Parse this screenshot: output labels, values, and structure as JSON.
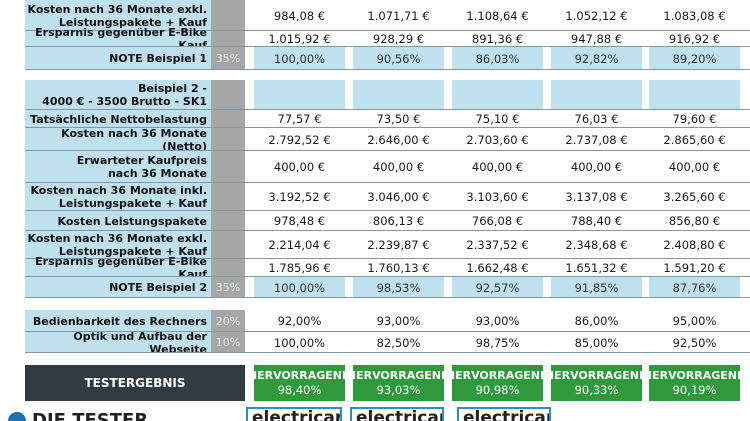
{
  "rows": [
    {
      "label": "Kosten nach 36 Monate exkl.\nLeistungspakete + Kauf",
      "weight": "",
      "values": [
        "984,08 €",
        "1.071,71 €",
        "1.108,64 €",
        "1.052,12 €",
        "1.083,08 €"
      ]
    },
    {
      "label": "Ersparnis gegenüber E-Bike Kauf",
      "weight": "",
      "values": [
        "1.015,92 €",
        "928,29 €",
        "891,36 €",
        "947,88 €",
        "916,92 €"
      ]
    },
    {
      "label": "NOTE Beispiel 1",
      "weight": "35%",
      "values": [
        "100,00%",
        "90,56%",
        "86,03%",
        "92,82%",
        "89,20%"
      ]
    },
    {
      "label": "Beispiel 2 -\n4000 € - 3500 Brutto - SK1",
      "weight": "",
      "values": [
        "",
        "",
        "",
        "",
        ""
      ]
    },
    {
      "label": "Tatsächliche Nettobelastung",
      "weight": "",
      "values": [
        "77,57 €",
        "73,50 €",
        "75,10 €",
        "76,03 €",
        "79,60 €"
      ]
    },
    {
      "label": "Kosten nach 36 Monate (Netto)",
      "weight": "",
      "values": [
        "2.792,52 €",
        "2.646,00 €",
        "2.703,60 €",
        "2.737,08 €",
        "2.865,60 €"
      ]
    },
    {
      "label": "Erwarteter Kaufpreis\nnach 36 Monate",
      "weight": "",
      "values": [
        "400,00 €",
        "400,00 €",
        "400,00 €",
        "400,00 €",
        "400,00 €"
      ]
    },
    {
      "label": "Kosten nach 36 Monate inkl.\nLeistungspakete + Kauf",
      "weight": "",
      "values": [
        "3.192,52 €",
        "3.046,00 €",
        "3.103,60 €",
        "3.137,08 €",
        "3.265,60 €"
      ]
    },
    {
      "label": "Kosten Leistungspakete",
      "weight": "",
      "values": [
        "978,48 €",
        "806,13 €",
        "766,08 €",
        "788,40 €",
        "856,80 €"
      ]
    },
    {
      "label": "Kosten nach 36 Monate exkl.\nLeistungspakete + Kauf",
      "weight": "",
      "values": [
        "2.214,04 €",
        "2.239,87 €",
        "2.337,52 €",
        "2.348,68 €",
        "2.408,80 €"
      ]
    },
    {
      "label": "Ersparnis gegenüber E-Bike Kauf",
      "weight": "",
      "values": [
        "1.785,96 €",
        "1.760,13 €",
        "1.662,48 €",
        "1.651,32 €",
        "1.591,20 €"
      ]
    },
    {
      "label": "NOTE Beispiel 2",
      "weight": "35%",
      "values": [
        "100,00%",
        "98,53%",
        "92,57%",
        "91,85%",
        "87,76%"
      ]
    },
    {
      "label": "Bedienbarkeit des Rechners",
      "weight": "20%",
      "values": [
        "92,00%",
        "93,00%",
        "93,00%",
        "86,00%",
        "95,00%"
      ]
    },
    {
      "label": "Optik und Aufbau der Webseite",
      "weight": "10%",
      "values": [
        "100,00%",
        "82,50%",
        "98,75%",
        "85,00%",
        "92,50%"
      ]
    }
  ],
  "result": {
    "label": "TESTERGEBNIS",
    "items": [
      {
        "title": "HERVORRAGEND",
        "value": "98,40%"
      },
      {
        "title": "HERVORRAGEND",
        "value": "93,03%"
      },
      {
        "title": "HERVORRAGEND",
        "value": "90,98%"
      },
      {
        "title": "HERVORRAGEND",
        "value": "90,33%"
      },
      {
        "title": "HERVORRAGEND",
        "value": "90,19%"
      }
    ]
  },
  "footer": {
    "tester_label": "DIE TESTER",
    "logos": [
      "electricar",
      "electricar",
      "electricar"
    ]
  },
  "colors": {
    "label_bg": "#bfe0ef",
    "weight_bg": "#a6a6a6",
    "result_bg": "#2e9a3c",
    "result_label_bg": "#333b42"
  }
}
